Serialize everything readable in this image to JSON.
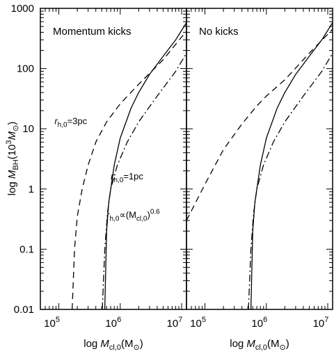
{
  "chart_data": [
    {
      "type": "line",
      "panel_label": "Momentum kicks",
      "xlabel": "log M_cl,0(M_⊙)",
      "ylabel": "log M_BH(10^3 M_⊙)",
      "x_scale": "log",
      "y_scale": "log",
      "xlim": [
        50000,
        12000000
      ],
      "ylim": [
        0.01,
        1000
      ],
      "x_tick_labels": [
        "10^5",
        "10^6",
        "10^7"
      ],
      "y_tick_labels": [
        "0.01",
        "0.1",
        "1",
        "10",
        "100",
        "1000"
      ],
      "grid": false,
      "legend": "none",
      "series": [
        {
          "name": "r_h,0=1pc",
          "style": "solid",
          "points": [
            [
              560000,
              0.01
            ],
            [
              600000,
              0.2
            ],
            [
              650000,
              0.6
            ],
            [
              800000,
              2.5
            ],
            [
              1000000,
              7
            ],
            [
              1500000,
              22
            ],
            [
              2000000,
              40
            ],
            [
              3000000,
              80
            ],
            [
              5000000,
              160
            ],
            [
              8000000,
              300
            ],
            [
              12000000,
              580
            ]
          ]
        },
        {
          "name": "r_h,0=3pc",
          "style": "dashed",
          "points": [
            [
              165000,
              0.01
            ],
            [
              180000,
              0.1
            ],
            [
              200000,
              0.35
            ],
            [
              240000,
              1
            ],
            [
              300000,
              2.5
            ],
            [
              400000,
              6
            ],
            [
              600000,
              13
            ],
            [
              1000000,
              26
            ],
            [
              2000000,
              55
            ],
            [
              5000000,
              140
            ],
            [
              12000000,
              420
            ]
          ]
        },
        {
          "name": "r_h,0∝(M_cl,0)^0.6",
          "style": "dashdot",
          "points": [
            [
              510000,
              0.01
            ],
            [
              560000,
              0.1
            ],
            [
              620000,
              0.4
            ],
            [
              700000,
              1
            ],
            [
              900000,
              2.5
            ],
            [
              1300000,
              6
            ],
            [
              2000000,
              13
            ],
            [
              4000000,
              35
            ],
            [
              8000000,
              90
            ],
            [
              12000000,
              180
            ]
          ]
        }
      ],
      "annotations": [
        {
          "text_main": "r",
          "text_sub": "h,0",
          "text_rest": "=3pc",
          "x": 85000,
          "y": 12
        },
        {
          "text_main": "r",
          "text_sub": "h,0",
          "text_rest": "=1pc",
          "x": 700000,
          "y": 1.45
        },
        {
          "text_main": "r",
          "text_sub": "h,0",
          "text_rest": "∝(M",
          "text_sub2": "cl,0",
          "text_rest2": ")",
          "text_sup": "0.6",
          "x": 600000,
          "y": 0.33
        }
      ]
    },
    {
      "type": "line",
      "panel_label": "No kicks",
      "xlabel": "log M_cl,0(M_⊙)",
      "x_scale": "log",
      "y_scale": "log",
      "xlim": [
        50000,
        12000000
      ],
      "ylim": [
        0.01,
        1000
      ],
      "x_tick_labels": [
        "10^5",
        "10^6",
        "10^7"
      ],
      "grid": false,
      "legend": "none",
      "series": [
        {
          "name": "r_h,0=1pc",
          "style": "solid",
          "points": [
            [
              560000,
              0.01
            ],
            [
              600000,
              0.2
            ],
            [
              650000,
              0.6
            ],
            [
              800000,
              2.5
            ],
            [
              1000000,
              7
            ],
            [
              1500000,
              22
            ],
            [
              2000000,
              40
            ],
            [
              3000000,
              80
            ],
            [
              5000000,
              160
            ],
            [
              8000000,
              300
            ],
            [
              12000000,
              580
            ]
          ]
        },
        {
          "name": "r_h,0=3pc",
          "style": "dashed",
          "points": [
            [
              50000,
              0.3
            ],
            [
              100000,
              1.2
            ],
            [
              200000,
              4.5
            ],
            [
              400000,
              12
            ],
            [
              700000,
              24
            ],
            [
              1000000,
              35
            ],
            [
              2000000,
              65
            ],
            [
              5000000,
              180
            ],
            [
              12000000,
              450
            ]
          ]
        },
        {
          "name": "r_h,0∝(M_cl,0)^0.6",
          "style": "dashdot",
          "points": [
            [
              510000,
              0.01
            ],
            [
              560000,
              0.1
            ],
            [
              620000,
              0.4
            ],
            [
              700000,
              1
            ],
            [
              900000,
              2.5
            ],
            [
              1300000,
              6
            ],
            [
              2000000,
              13
            ],
            [
              4000000,
              35
            ],
            [
              8000000,
              90
            ],
            [
              12000000,
              180
            ]
          ]
        }
      ],
      "annotations": []
    }
  ]
}
